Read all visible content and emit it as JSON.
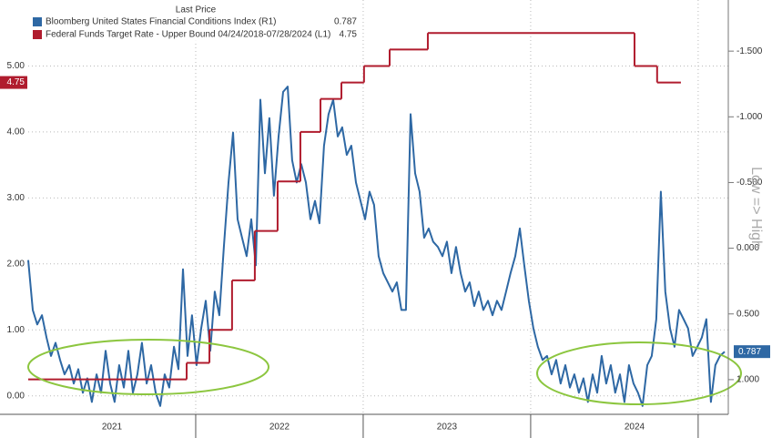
{
  "chart_data": {
    "type": "line",
    "legend_title": "Last Price",
    "y2label": "Low => High",
    "xlim": [
      2021.0,
      2025.18
    ],
    "xticks": [
      {
        "value": 2021.5,
        "label": "2021"
      },
      {
        "value": 2022.5,
        "label": "2022"
      },
      {
        "value": 2023.5,
        "label": "2023"
      },
      {
        "value": 2024.62,
        "label": "2024"
      }
    ],
    "xgrid": [
      2022,
      2023,
      2024,
      2025
    ],
    "ylim": [
      -0.28,
      6.0
    ],
    "yticks": [
      {
        "value": 0,
        "label": "0.00"
      },
      {
        "value": 1,
        "label": "1.00"
      },
      {
        "value": 2,
        "label": "2.00"
      },
      {
        "value": 3,
        "label": "3.00"
      },
      {
        "value": 4,
        "label": "4.00"
      },
      {
        "value": 5,
        "label": "5.00"
      }
    ],
    "y2lim": [
      1.264,
      -1.889
    ],
    "y2ticks": [
      {
        "value": -1.5,
        "label": "-1.500"
      },
      {
        "value": -1,
        "label": "-1.000"
      },
      {
        "value": -0.5,
        "label": "-0.500"
      },
      {
        "value": 0,
        "label": "0.000"
      },
      {
        "value": 0.5,
        "label": "0.500"
      },
      {
        "value": 1,
        "label": "1.000"
      }
    ],
    "grid": true,
    "series": [
      {
        "name": "Bloomberg United States Financial Conditions Index (R1)",
        "color": "#2e68a4",
        "axis": "y2",
        "x": [
          2021.0,
          2021.027,
          2021.054,
          2021.082,
          2021.109,
          2021.136,
          2021.163,
          2021.19,
          2021.217,
          2021.245,
          2021.272,
          2021.299,
          2021.326,
          2021.353,
          2021.38,
          2021.408,
          2021.435,
          2021.462,
          2021.489,
          2021.516,
          2021.543,
          2021.571,
          2021.598,
          2021.625,
          2021.652,
          2021.679,
          2021.707,
          2021.734,
          2021.761,
          2021.788,
          2021.815,
          2021.842,
          2021.87,
          2021.897,
          2021.924,
          2021.951,
          2021.978,
          2022.005,
          2022.033,
          2022.06,
          2022.087,
          2022.114,
          2022.141,
          2022.168,
          2022.196,
          2022.223,
          2022.25,
          2022.277,
          2022.304,
          2022.332,
          2022.359,
          2022.386,
          2022.413,
          2022.44,
          2022.467,
          2022.495,
          2022.522,
          2022.549,
          2022.576,
          2022.603,
          2022.63,
          2022.658,
          2022.685,
          2022.712,
          2022.739,
          2022.766,
          2022.793,
          2022.821,
          2022.848,
          2022.875,
          2022.902,
          2022.929,
          2022.957,
          2022.984,
          2023.011,
          2023.038,
          2023.065,
          2023.092,
          2023.12,
          2023.147,
          2023.174,
          2023.201,
          2023.228,
          2023.255,
          2023.283,
          2023.31,
          2023.337,
          2023.364,
          2023.391,
          2023.418,
          2023.446,
          2023.473,
          2023.5,
          2023.527,
          2023.554,
          2023.582,
          2023.609,
          2023.636,
          2023.663,
          2023.69,
          2023.717,
          2023.745,
          2023.772,
          2023.799,
          2023.826,
          2023.853,
          2023.88,
          2023.908,
          2023.935,
          2023.962,
          2023.989,
          2024.016,
          2024.043,
          2024.071,
          2024.098,
          2024.125,
          2024.152,
          2024.179,
          2024.207,
          2024.234,
          2024.261,
          2024.288,
          2024.315,
          2024.342,
          2024.37,
          2024.397,
          2024.424,
          2024.451,
          2024.478,
          2024.505,
          2024.533,
          2024.56,
          2024.587,
          2024.614,
          2024.641,
          2024.668,
          2024.696,
          2024.723,
          2024.75,
          2024.777,
          2024.804,
          2024.832,
          2024.859,
          2024.886,
          2024.913,
          2024.94,
          2024.967,
          2024.995,
          2025.022,
          2025.049,
          2025.076,
          2025.103,
          2025.13,
          2025.158
        ],
        "values": [
          0.09,
          0.47,
          0.58,
          0.51,
          0.68,
          0.82,
          0.72,
          0.85,
          0.96,
          0.89,
          1.03,
          0.92,
          1.1,
          0.99,
          1.17,
          0.96,
          1.1,
          0.78,
          1.03,
          1.17,
          0.89,
          1.06,
          0.78,
          1.1,
          0.96,
          0.72,
          1.03,
          0.89,
          1.1,
          1.2,
          0.96,
          1.06,
          0.75,
          0.92,
          0.16,
          0.82,
          0.51,
          0.89,
          0.61,
          0.4,
          0.78,
          0.33,
          0.51,
          -0.01,
          -0.5,
          -0.88,
          -0.22,
          -0.08,
          0.06,
          -0.22,
          0.13,
          -1.13,
          -0.57,
          -0.99,
          -0.4,
          -0.85,
          -1.19,
          -1.23,
          -0.67,
          -0.5,
          -0.64,
          -0.5,
          -0.22,
          -0.36,
          -0.19,
          -0.78,
          -1.02,
          -1.13,
          -0.85,
          -0.92,
          -0.71,
          -0.78,
          -0.5,
          -0.36,
          -0.22,
          -0.43,
          -0.33,
          0.06,
          0.19,
          0.26,
          0.33,
          0.26,
          0.47,
          0.47,
          -1.02,
          -0.57,
          -0.43,
          -0.08,
          -0.15,
          -0.05,
          -0.01,
          0.06,
          -0.05,
          0.19,
          -0.01,
          0.19,
          0.33,
          0.26,
          0.44,
          0.33,
          0.47,
          0.4,
          0.51,
          0.4,
          0.47,
          0.33,
          0.19,
          0.06,
          -0.15,
          0.13,
          0.4,
          0.61,
          0.75,
          0.85,
          0.82,
          0.96,
          0.85,
          1.03,
          0.89,
          1.06,
          0.96,
          1.1,
          0.99,
          1.17,
          0.96,
          1.1,
          0.82,
          1.03,
          0.89,
          1.1,
          0.96,
          1.17,
          0.89,
          1.03,
          1.1,
          1.2,
          0.89,
          0.82,
          0.54,
          -0.43,
          0.33,
          0.61,
          0.75,
          0.47,
          0.54,
          0.61,
          0.82,
          0.75,
          0.68,
          0.54,
          1.17,
          0.89,
          0.82,
          0.787
        ]
      },
      {
        "name": "Federal Funds Target Rate - Upper Bound 04/24/2018-07/28/2024 (L1)",
        "color": "#b01c2e",
        "step": true,
        "x": [
          2021.0,
          2021.946,
          2022.082,
          2022.217,
          2022.353,
          2022.489,
          2022.625,
          2022.745,
          2022.87,
          2023.005,
          2023.158,
          2023.386,
          2024.62,
          2024.755,
          2024.897
        ],
        "values": [
          0.25,
          0.5,
          1.0,
          1.75,
          2.5,
          3.25,
          4.0,
          4.5,
          4.75,
          5.0,
          5.25,
          5.5,
          5.0,
          4.75,
          4.75
        ]
      }
    ]
  }
}
